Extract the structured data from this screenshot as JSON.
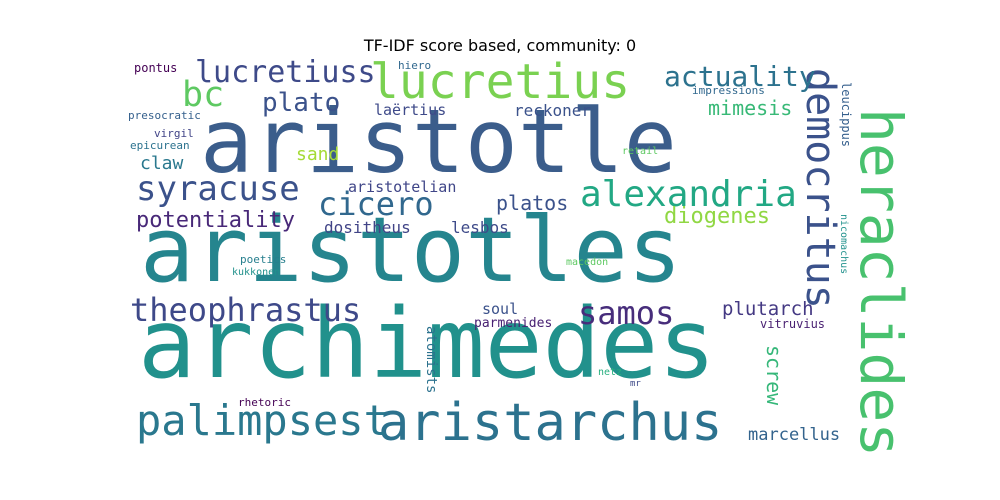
{
  "chart_data": {
    "type": "wordcloud",
    "title": "TF-IDF score based, community: 0",
    "words": [
      {
        "text": "archimedes",
        "weight": 1.0,
        "color": "#21918c"
      },
      {
        "text": "aristotles",
        "weight": 0.93,
        "color": "#25858e"
      },
      {
        "text": "aristotle",
        "weight": 0.92,
        "color": "#3b5d8b"
      },
      {
        "text": "heraclides",
        "weight": 0.6,
        "color": "#48c16e"
      },
      {
        "text": "aristarchus",
        "weight": 0.55,
        "color": "#2c728e"
      },
      {
        "text": "lucretius",
        "weight": 0.52,
        "color": "#7ad151"
      },
      {
        "text": "democritus",
        "weight": 0.45,
        "color": "#3b528b"
      },
      {
        "text": "palimpsest",
        "weight": 0.45,
        "color": "#2a788e"
      },
      {
        "text": "alexandria",
        "weight": 0.4,
        "color": "#22a884"
      },
      {
        "text": "syracuse",
        "weight": 0.38,
        "color": "#3b528b"
      },
      {
        "text": "theophrastus",
        "weight": 0.36,
        "color": "#3e4989"
      },
      {
        "text": "bc",
        "weight": 0.36,
        "color": "#5ec962"
      },
      {
        "text": "lucretiuss",
        "weight": 0.33,
        "color": "#3e4a89"
      },
      {
        "text": "cicero",
        "weight": 0.33,
        "color": "#31688e"
      },
      {
        "text": "samos",
        "weight": 0.32,
        "color": "#472d7b"
      },
      {
        "text": "actuality",
        "weight": 0.29,
        "color": "#2c728e"
      },
      {
        "text": "plato",
        "weight": 0.28,
        "color": "#3b528b"
      },
      {
        "text": "potentiality",
        "weight": 0.23,
        "color": "#482878"
      },
      {
        "text": "diogenes",
        "weight": 0.23,
        "color": "#90d743"
      },
      {
        "text": "platos",
        "weight": 0.21,
        "color": "#3b528b"
      },
      {
        "text": "screw",
        "weight": 0.21,
        "color": "#35b779"
      },
      {
        "text": "mimesis",
        "weight": 0.2,
        "color": "#38b977"
      },
      {
        "text": "plutarch",
        "weight": 0.2,
        "color": "#443983"
      },
      {
        "text": "claw",
        "weight": 0.19,
        "color": "#2a788e"
      },
      {
        "text": "sand",
        "weight": 0.18,
        "color": "#a5db36"
      },
      {
        "text": "marcellus",
        "weight": 0.17,
        "color": "#33638d"
      },
      {
        "text": "lesbos",
        "weight": 0.16,
        "color": "#3e4a89"
      },
      {
        "text": "dositheus",
        "weight": 0.16,
        "color": "#414487"
      },
      {
        "text": "reckoner",
        "weight": 0.16,
        "color": "#3b528b"
      },
      {
        "text": "soul",
        "weight": 0.15,
        "color": "#3b528b"
      },
      {
        "text": "laërtius",
        "weight": 0.15,
        "color": "#3e4a89"
      },
      {
        "text": "aristotelian",
        "weight": 0.15,
        "color": "#404688"
      },
      {
        "text": "parmenides",
        "weight": 0.13,
        "color": "#482173"
      },
      {
        "text": "atomists",
        "weight": 0.13,
        "color": "#2c728e"
      },
      {
        "text": "vitruvius",
        "weight": 0.12,
        "color": "#481f71"
      },
      {
        "text": "leucippus",
        "weight": 0.12,
        "color": "#355f8d"
      },
      {
        "text": "pontus",
        "weight": 0.12,
        "color": "#440154"
      },
      {
        "text": "epicurean",
        "weight": 0.11,
        "color": "#2c728e"
      },
      {
        "text": "presocratic",
        "weight": 0.11,
        "color": "#35608d"
      },
      {
        "text": "virgil",
        "weight": 0.11,
        "color": "#414487"
      },
      {
        "text": "impressions",
        "weight": 0.11,
        "color": "#31688e"
      },
      {
        "text": "rhetoric",
        "weight": 0.11,
        "color": "#440154"
      },
      {
        "text": "hiero",
        "weight": 0.11,
        "color": "#31688e"
      },
      {
        "text": "poetics",
        "weight": 0.11,
        "color": "#277f8e"
      },
      {
        "text": "nicomachus",
        "weight": 0.1,
        "color": "#21918c"
      },
      {
        "text": "macedon",
        "weight": 0.1,
        "color": "#5ec962"
      },
      {
        "text": "retail",
        "weight": 0.1,
        "color": "#5ec962"
      },
      {
        "text": "kukkonen",
        "weight": 0.1,
        "color": "#21918c"
      },
      {
        "text": "netz",
        "weight": 0.1,
        "color": "#29af7f"
      },
      {
        "text": "mr",
        "weight": 0.08,
        "color": "#3e4a89"
      }
    ]
  }
}
